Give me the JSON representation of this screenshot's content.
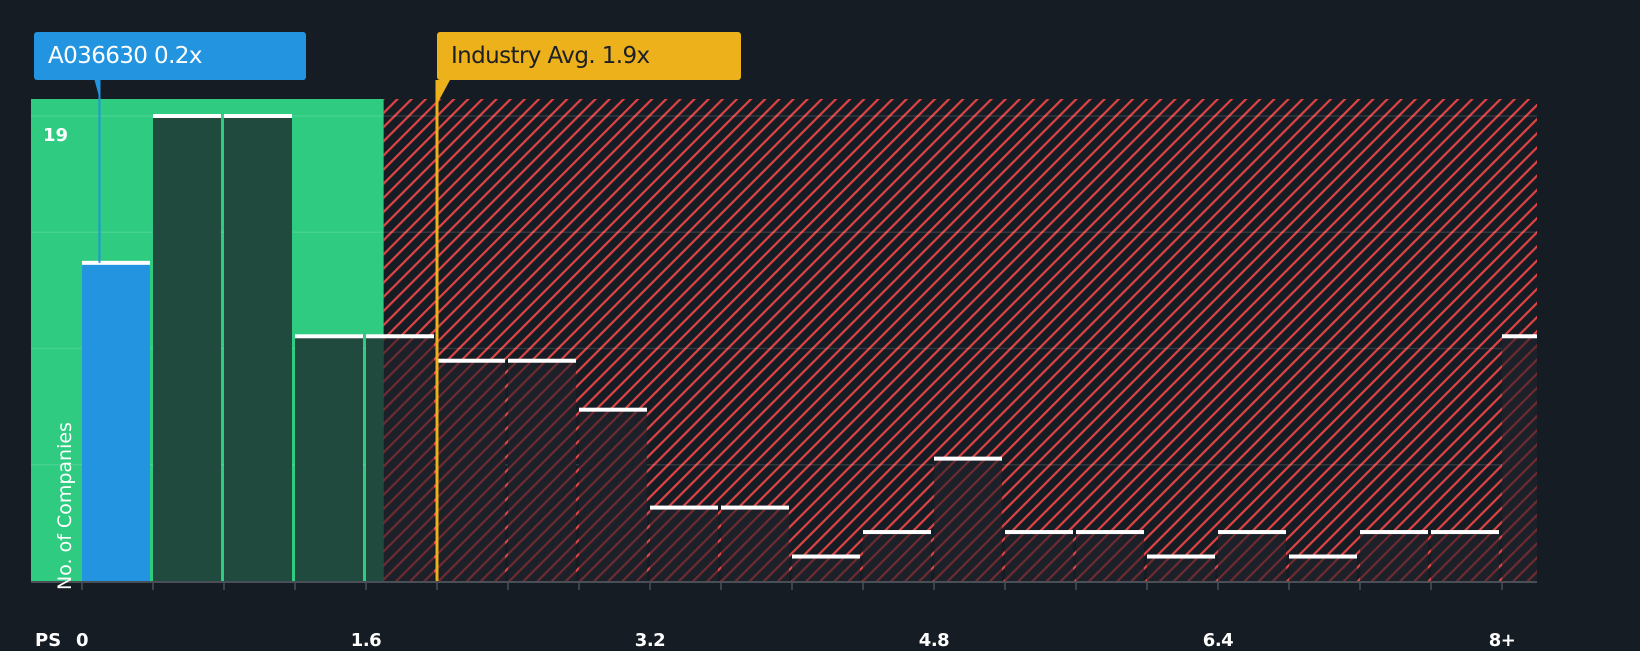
{
  "callouts": {
    "company": {
      "label": "A036630 0.2x",
      "value": 0.2,
      "color": "#2394e0"
    },
    "industry": {
      "label": "Industry Avg. 1.9x",
      "value": 1.9,
      "color": "#ecb11b"
    }
  },
  "axes": {
    "y_title": "No. of Companies",
    "y_max_label": "19",
    "x_name": "PS",
    "x_ticks": [
      "0",
      "1.6",
      "3.2",
      "4.8",
      "6.4",
      "8+"
    ]
  },
  "colors": {
    "background": "#161c24",
    "fair_zone": "#2ecb80",
    "bar_in_zone": "#214a3f",
    "company_bar": "#2394e0",
    "hatch": "#e04444",
    "bar_top": "#ffffff",
    "industry_line": "#ecb11b"
  },
  "chart_data": {
    "type": "bar",
    "title": "",
    "xlabel": "PS",
    "ylabel": "No. of Companies",
    "ylim": [
      0,
      19
    ],
    "bin_width": 0.4,
    "categories": [
      "0-0.4",
      "0.4-0.8",
      "0.8-1.2",
      "1.2-1.6",
      "1.6-2.0",
      "2.0-2.4",
      "2.4-2.8",
      "2.8-3.2",
      "3.2-3.6",
      "3.6-4.0",
      "4.0-4.4",
      "4.4-4.8",
      "4.8-5.2",
      "5.2-5.6",
      "5.6-6.0",
      "6.0-6.4",
      "6.4-6.8",
      "6.8-7.2",
      "7.2-7.6",
      "7.6-8.0",
      "8+"
    ],
    "values": [
      13,
      19,
      19,
      10,
      10,
      9,
      9,
      7,
      3,
      3,
      1,
      2,
      5,
      2,
      2,
      1,
      2,
      1,
      2,
      2,
      10
    ],
    "highlight_index": 0,
    "x_tick_labels": [
      "0",
      "1.6",
      "3.2",
      "4.8",
      "6.4",
      "8+"
    ],
    "gridlines_y": [
      4.75,
      9.5,
      14.25,
      19
    ],
    "grid": true,
    "fair_value_range": [
      0,
      1.7
    ],
    "annotations": [
      {
        "text": "A036630 0.2x",
        "x": 0.2
      },
      {
        "text": "Industry Avg. 1.9x",
        "x": 1.9
      }
    ],
    "legend": null
  }
}
